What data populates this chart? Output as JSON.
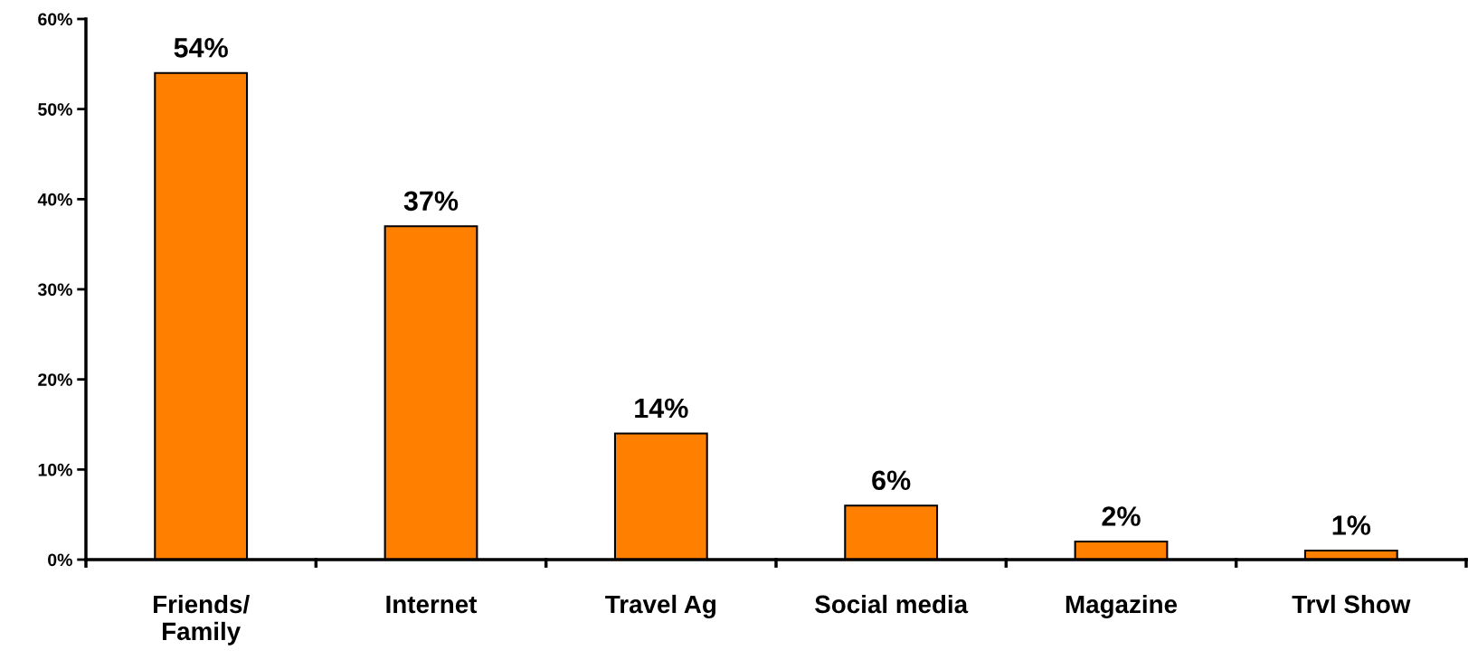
{
  "chart_data": {
    "type": "bar",
    "categories": [
      "Friends/\nFamily",
      "Internet",
      "Travel Ag",
      "Social media",
      "Magazine",
      "Trvl Show"
    ],
    "values": [
      54,
      37,
      14,
      6,
      2,
      1
    ],
    "value_labels": [
      "54%",
      "37%",
      "14%",
      "6%",
      "2%",
      "1%"
    ],
    "color": "#ff8000",
    "ylim": [
      0,
      60
    ],
    "yticks": [
      {
        "value": 0,
        "label": "0%"
      },
      {
        "value": 10,
        "label": "10%"
      },
      {
        "value": 20,
        "label": "20%"
      },
      {
        "value": 30,
        "label": "30%"
      },
      {
        "value": 40,
        "label": "40%"
      },
      {
        "value": 50,
        "label": "50%"
      },
      {
        "value": 60,
        "label": "60%"
      }
    ],
    "grid": false,
    "legend": false
  }
}
